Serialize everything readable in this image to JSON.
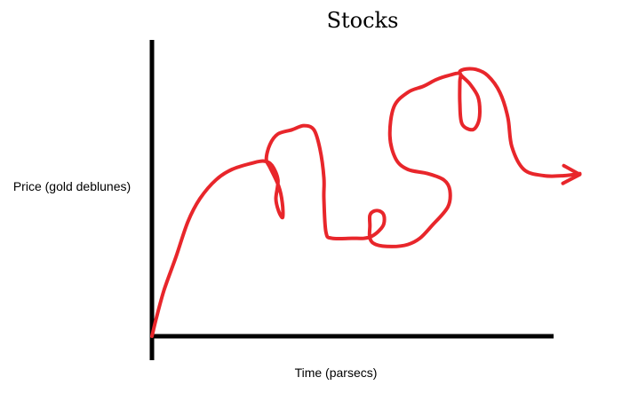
{
  "chart_data": {
    "type": "line",
    "title": "Stocks",
    "xlabel": "Time (parsecs)",
    "ylabel": "Price (gold deblunes)",
    "ticks": false,
    "grid": false,
    "legend": false,
    "axis_color": "#000000",
    "line_color": "#e8262b",
    "end_marker": "arrow",
    "series": [
      {
        "points": [
          [
            0,
            0
          ],
          [
            1,
            8
          ],
          [
            3,
            22
          ],
          [
            6,
            38
          ],
          [
            9,
            55
          ],
          [
            12,
            66
          ],
          [
            16,
            75
          ],
          [
            20,
            80
          ],
          [
            25,
            83
          ],
          [
            28,
            84
          ],
          [
            30,
            82
          ],
          [
            31.5,
            75
          ],
          [
            31,
            66
          ],
          [
            31.7,
            60
          ],
          [
            32.7,
            57
          ],
          [
            32.6,
            64
          ],
          [
            31.7,
            72
          ],
          [
            29.5,
            81
          ],
          [
            28.6,
            85
          ],
          [
            29.5,
            92
          ],
          [
            31.5,
            97
          ],
          [
            35,
            99
          ],
          [
            38,
            101
          ],
          [
            40.5,
            99
          ],
          [
            42,
            90
          ],
          [
            43,
            76
          ],
          [
            43,
            66
          ],
          [
            43.5,
            50
          ],
          [
            45,
            47
          ],
          [
            50,
            47
          ],
          [
            53,
            47
          ],
          [
            55,
            48
          ],
          [
            57,
            51
          ],
          [
            58,
            54
          ],
          [
            58,
            58
          ],
          [
            57,
            60
          ],
          [
            55.5,
            60
          ],
          [
            54.5,
            58
          ],
          [
            54.5,
            53
          ],
          [
            54.5,
            47
          ],
          [
            56,
            44
          ],
          [
            60,
            43
          ],
          [
            64,
            44
          ],
          [
            67,
            47
          ],
          [
            70,
            53
          ],
          [
            74,
            62
          ],
          [
            74.5,
            70
          ],
          [
            73,
            75
          ],
          [
            69,
            78
          ],
          [
            64,
            80
          ],
          [
            61,
            85
          ],
          [
            59.5,
            96
          ],
          [
            60.5,
            110
          ],
          [
            64,
            117
          ],
          [
            68,
            120
          ],
          [
            71,
            123
          ],
          [
            74,
            125
          ],
          [
            77,
            126
          ],
          [
            77,
            122
          ],
          [
            77,
            112
          ],
          [
            77.5,
            102
          ],
          [
            80,
            99
          ],
          [
            81.5,
            102
          ],
          [
            82,
            108
          ],
          [
            81.5,
            115
          ],
          [
            79.5,
            121
          ],
          [
            77,
            126
          ],
          [
            78,
            128
          ],
          [
            81,
            128
          ],
          [
            84,
            125
          ],
          [
            87,
            117
          ],
          [
            89,
            105
          ],
          [
            90,
            91
          ],
          [
            93,
            80
          ],
          [
            98,
            77
          ],
          [
            103,
            77
          ],
          [
            107,
            78
          ]
        ]
      }
    ]
  }
}
